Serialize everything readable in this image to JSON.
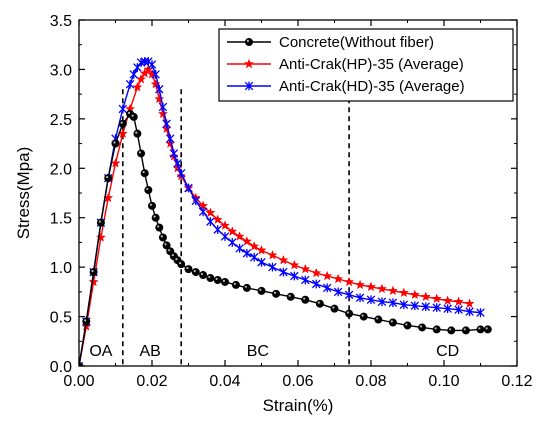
{
  "chart_data": {
    "type": "line",
    "title": "",
    "xlabel": "Strain(%)",
    "ylabel": "Stress(Mpa)",
    "xlim": [
      0.0,
      0.12
    ],
    "ylim": [
      0.0,
      3.5
    ],
    "xticks": [
      0.0,
      0.02,
      0.04,
      0.06,
      0.08,
      0.1,
      0.12
    ],
    "xtick_labels": [
      "0.00",
      "0.02",
      "0.04",
      "0.06",
      "0.08",
      "0.10",
      "0.12"
    ],
    "yticks": [
      0.0,
      0.5,
      1.0,
      1.5,
      2.0,
      2.5,
      3.0,
      3.5
    ],
    "ytick_labels": [
      "0.0",
      "0.5",
      "1.0",
      "1.5",
      "2.0",
      "2.5",
      "3.0",
      "3.5"
    ],
    "grid": false,
    "legend_position": "top-right",
    "region_dividers": [
      0.012,
      0.028,
      0.074
    ],
    "regions": [
      {
        "label": "OA",
        "x": 0.006
      },
      {
        "label": "AB",
        "x": 0.0195
      },
      {
        "label": "BC",
        "x": 0.049
      },
      {
        "label": "CD",
        "x": 0.101
      }
    ],
    "series": [
      {
        "name": "Concrete(Without fiber)",
        "color": "#000000",
        "marker": "circle",
        "x": [
          0.0,
          0.002,
          0.004,
          0.006,
          0.008,
          0.01,
          0.012,
          0.014,
          0.015,
          0.016,
          0.017,
          0.018,
          0.019,
          0.02,
          0.021,
          0.022,
          0.023,
          0.024,
          0.025,
          0.026,
          0.027,
          0.028,
          0.03,
          0.032,
          0.034,
          0.036,
          0.038,
          0.04,
          0.043,
          0.046,
          0.05,
          0.054,
          0.058,
          0.062,
          0.066,
          0.07,
          0.074,
          0.078,
          0.082,
          0.086,
          0.09,
          0.094,
          0.098,
          0.102,
          0.106,
          0.11,
          0.112
        ],
        "y": [
          0.0,
          0.45,
          0.95,
          1.45,
          1.9,
          2.25,
          2.45,
          2.55,
          2.52,
          2.35,
          2.15,
          1.95,
          1.78,
          1.62,
          1.5,
          1.4,
          1.3,
          1.22,
          1.16,
          1.11,
          1.07,
          1.03,
          0.98,
          0.95,
          0.92,
          0.89,
          0.87,
          0.85,
          0.82,
          0.79,
          0.76,
          0.73,
          0.7,
          0.67,
          0.63,
          0.58,
          0.53,
          0.5,
          0.47,
          0.44,
          0.41,
          0.39,
          0.37,
          0.36,
          0.36,
          0.37,
          0.37
        ]
      },
      {
        "name": "Anti-Crak(HP)-35 (Average)",
        "color": "#ff0000",
        "marker": "star",
        "x": [
          0.0,
          0.002,
          0.004,
          0.006,
          0.008,
          0.01,
          0.012,
          0.014,
          0.016,
          0.017,
          0.018,
          0.019,
          0.02,
          0.021,
          0.022,
          0.023,
          0.024,
          0.025,
          0.026,
          0.027,
          0.028,
          0.03,
          0.032,
          0.034,
          0.036,
          0.038,
          0.04,
          0.042,
          0.044,
          0.046,
          0.048,
          0.05,
          0.053,
          0.056,
          0.059,
          0.062,
          0.065,
          0.068,
          0.071,
          0.074,
          0.077,
          0.08,
          0.083,
          0.086,
          0.089,
          0.092,
          0.095,
          0.098,
          0.101,
          0.104,
          0.107
        ],
        "y": [
          0.0,
          0.4,
          0.85,
          1.3,
          1.7,
          2.05,
          2.35,
          2.6,
          2.82,
          2.9,
          2.96,
          3.0,
          2.95,
          2.85,
          2.7,
          2.55,
          2.4,
          2.25,
          2.12,
          2.0,
          1.92,
          1.8,
          1.7,
          1.62,
          1.55,
          1.48,
          1.42,
          1.36,
          1.31,
          1.26,
          1.21,
          1.17,
          1.12,
          1.07,
          1.02,
          0.98,
          0.94,
          0.91,
          0.88,
          0.85,
          0.82,
          0.8,
          0.78,
          0.76,
          0.74,
          0.72,
          0.7,
          0.68,
          0.66,
          0.65,
          0.63
        ]
      },
      {
        "name": "Anti-Crak(HD)-35 (Average)",
        "color": "#0000ff",
        "marker": "x",
        "x": [
          0.0,
          0.002,
          0.004,
          0.006,
          0.008,
          0.01,
          0.012,
          0.014,
          0.015,
          0.016,
          0.017,
          0.018,
          0.019,
          0.02,
          0.021,
          0.022,
          0.023,
          0.024,
          0.025,
          0.026,
          0.027,
          0.028,
          0.03,
          0.032,
          0.034,
          0.036,
          0.038,
          0.04,
          0.042,
          0.044,
          0.046,
          0.048,
          0.05,
          0.053,
          0.056,
          0.059,
          0.062,
          0.065,
          0.068,
          0.071,
          0.074,
          0.077,
          0.08,
          0.083,
          0.086,
          0.089,
          0.092,
          0.095,
          0.098,
          0.101,
          0.104,
          0.107,
          0.11
        ],
        "y": [
          0.0,
          0.45,
          0.95,
          1.45,
          1.9,
          2.3,
          2.6,
          2.85,
          2.95,
          3.02,
          3.07,
          3.08,
          3.08,
          3.05,
          2.95,
          2.8,
          2.62,
          2.45,
          2.3,
          2.15,
          2.05,
          1.95,
          1.8,
          1.67,
          1.56,
          1.46,
          1.38,
          1.31,
          1.25,
          1.19,
          1.14,
          1.1,
          1.05,
          1.0,
          0.95,
          0.91,
          0.87,
          0.83,
          0.79,
          0.75,
          0.72,
          0.69,
          0.67,
          0.65,
          0.64,
          0.62,
          0.61,
          0.6,
          0.59,
          0.58,
          0.57,
          0.55,
          0.54
        ]
      }
    ]
  }
}
